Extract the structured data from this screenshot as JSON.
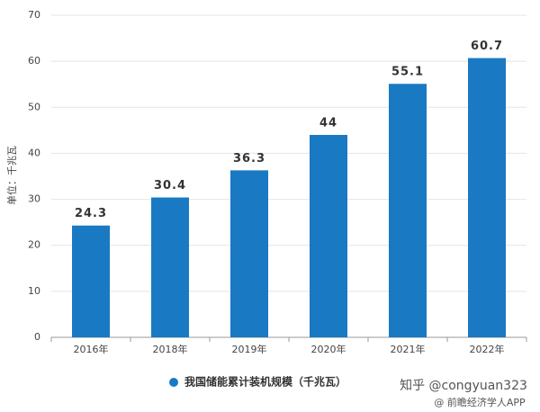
{
  "chart_data": {
    "type": "bar",
    "y_label": "单位：千兆瓦",
    "categories": [
      "2016年",
      "2018年",
      "2019年",
      "2020年",
      "2021年",
      "2022年"
    ],
    "series": [
      {
        "name": "我国储能累计装机规模（千兆瓦）",
        "color": "#1a79c3",
        "values": [
          24.3,
          30.4,
          36.3,
          44,
          55.1,
          60.7
        ]
      }
    ],
    "ylim": [
      0,
      70
    ],
    "yticks": [
      0,
      10,
      20,
      30,
      40,
      50,
      60,
      70
    ],
    "grid": true,
    "watermarks": [
      "知乎 @congyuan323",
      "@ 前瞻经济学人APP"
    ]
  }
}
